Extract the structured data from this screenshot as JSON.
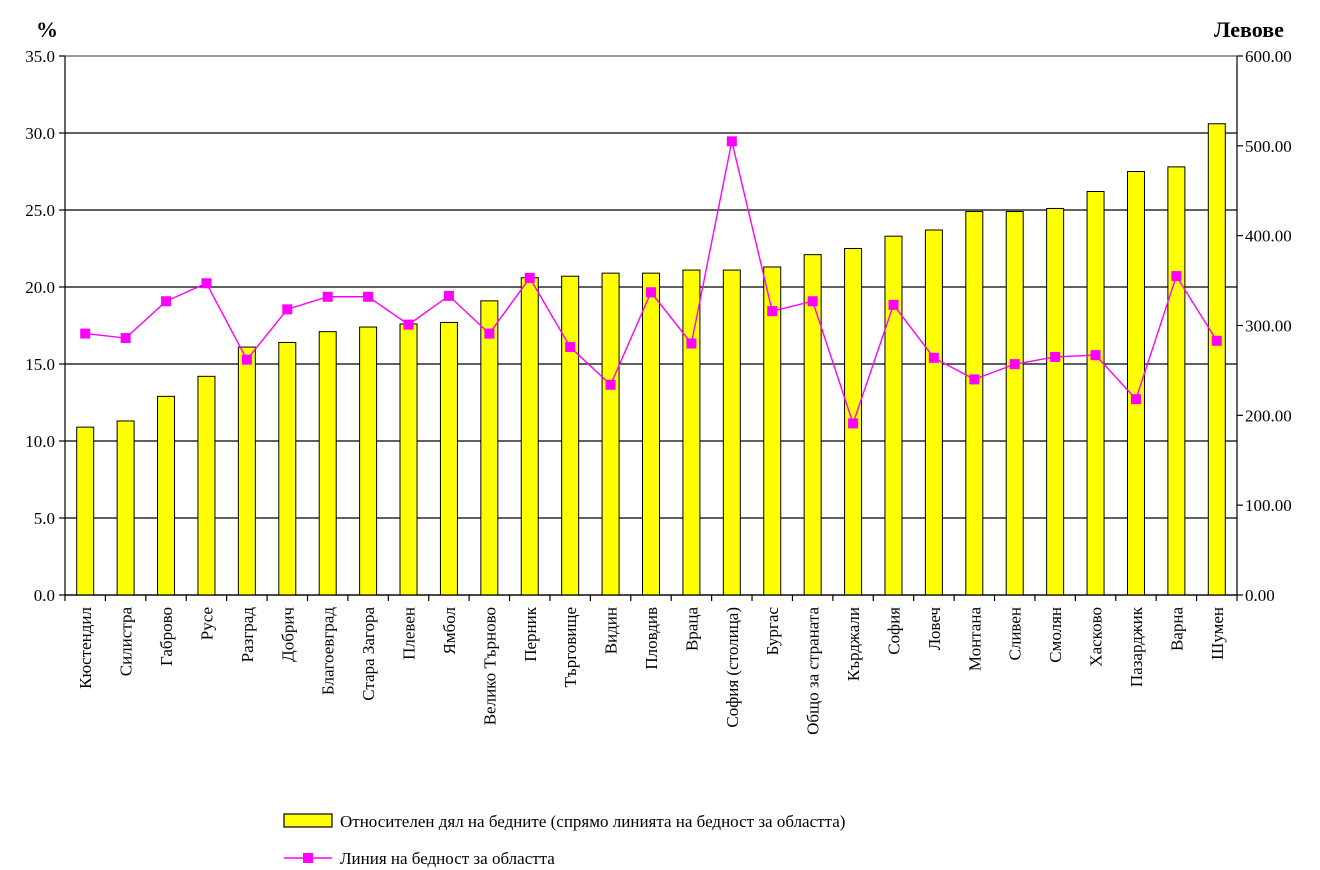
{
  "chart_data": {
    "type": "bar",
    "left_axis_unit": "%",
    "right_axis_unit": "Левове",
    "ylim_left": [
      0,
      35
    ],
    "ylim_right": [
      0,
      600
    ],
    "left_ticks": [
      "0.0",
      "5.0",
      "10.0",
      "15.0",
      "20.0",
      "25.0",
      "30.0",
      "35.0"
    ],
    "right_ticks": [
      "0.00",
      "100.00",
      "200.00",
      "300.00",
      "400.00",
      "500.00",
      "600.00"
    ],
    "grid": true,
    "legend_position": "bottom",
    "colors": {
      "bar_fill": "#ffff00",
      "bar_stroke": "#000000",
      "line": "#ff00ff",
      "marker": "#ff00ff"
    },
    "categories": [
      "Кюстендил",
      "Силистра",
      "Габрово",
      "Русе",
      "Разград",
      "Добрич",
      "Благоевград",
      "Стара Загора",
      "Плевен",
      "Ямбол",
      "Велико Търново",
      "Перник",
      "Търговище",
      "Видин",
      "Пловдив",
      "Враца",
      "София (столица)",
      "Бургас",
      "Общо за страната",
      "Кърджали",
      "София",
      "Ловеч",
      "Монтана",
      "Сливен",
      "Смолян",
      "Хасково",
      "Пазарджик",
      "Варна",
      "Шумен"
    ],
    "series": [
      {
        "name": "Относителен дял на бедните (спрямо линията на бедност за областта)",
        "type": "bar",
        "axis": "left",
        "values": [
          10.9,
          11.3,
          12.9,
          14.2,
          16.1,
          16.4,
          17.1,
          17.4,
          17.6,
          17.7,
          19.1,
          20.6,
          20.7,
          20.9,
          20.9,
          21.1,
          21.1,
          21.3,
          22.1,
          22.5,
          23.3,
          23.7,
          24.9,
          24.9,
          25.1,
          26.2,
          27.5,
          27.8,
          30.6
        ]
      },
      {
        "name": "Линия на бедност за областта",
        "type": "line",
        "axis": "right",
        "values": [
          291,
          286,
          327,
          347,
          262,
          318,
          332,
          332,
          301,
          333,
          291,
          353,
          276,
          234,
          337,
          280,
          505,
          316,
          327,
          191,
          323,
          264,
          240,
          257,
          265,
          267,
          218,
          355,
          283
        ]
      }
    ]
  }
}
